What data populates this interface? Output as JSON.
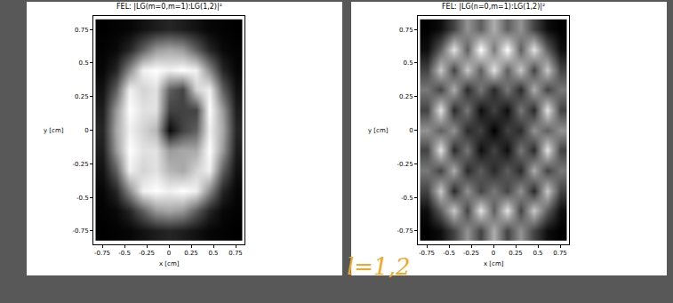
{
  "chart_data": [
    {
      "type": "heatmap",
      "title": "FEL: |LG(m=0,m=1):LG(1,2)|²",
      "x_label": "x [cm]",
      "y_label": "y [cm]",
      "grid": false,
      "x": [
        -0.75,
        -0.6,
        -0.45,
        -0.3,
        -0.15,
        0,
        0.15,
        0.3,
        0.45,
        0.6,
        0.75
      ],
      "y": [
        -0.75,
        -0.6,
        -0.45,
        -0.3,
        -0.15,
        0,
        0.15,
        0.3,
        0.45,
        0.6,
        0.75
      ],
      "cells": [
        [
          0.02,
          0.03,
          0.04,
          0.08,
          0.12,
          0.15,
          0.12,
          0.08,
          0.04,
          0.03,
          0.02
        ],
        [
          0.03,
          0.05,
          0.15,
          0.35,
          0.55,
          0.6,
          0.55,
          0.35,
          0.15,
          0.05,
          0.03
        ],
        [
          0.04,
          0.15,
          0.5,
          0.85,
          0.9,
          0.85,
          0.9,
          0.85,
          0.5,
          0.15,
          0.04
        ],
        [
          0.08,
          0.35,
          0.85,
          0.75,
          0.8,
          0.65,
          0.6,
          0.75,
          0.85,
          0.35,
          0.08
        ],
        [
          0.12,
          0.55,
          0.9,
          0.8,
          0.8,
          0.55,
          0.6,
          0.6,
          0.9,
          0.55,
          0.12
        ],
        [
          0.15,
          0.6,
          0.85,
          0.75,
          0.65,
          0.05,
          0.25,
          0.35,
          0.85,
          0.6,
          0.15
        ],
        [
          0.12,
          0.55,
          0.9,
          0.8,
          0.8,
          0.25,
          0.25,
          0.25,
          0.9,
          0.55,
          0.12
        ],
        [
          0.08,
          0.35,
          0.85,
          0.75,
          0.8,
          0.35,
          0.25,
          0.75,
          0.85,
          0.35,
          0.08
        ],
        [
          0.04,
          0.15,
          0.5,
          0.85,
          0.9,
          0.85,
          0.9,
          0.85,
          0.5,
          0.15,
          0.04
        ],
        [
          0.03,
          0.05,
          0.15,
          0.35,
          0.55,
          0.6,
          0.55,
          0.35,
          0.15,
          0.05,
          0.03
        ],
        [
          0.02,
          0.03,
          0.04,
          0.08,
          0.12,
          0.15,
          0.12,
          0.08,
          0.04,
          0.03,
          0.02
        ]
      ],
      "xlim": [
        -0.85,
        0.85
      ],
      "ylim": [
        -0.85,
        0.85
      ],
      "xticks": [
        -0.75,
        -0.5,
        -0.25,
        0,
        0.25,
        0.5,
        0.75
      ],
      "yticks": [
        -0.75,
        -0.5,
        -0.25,
        0,
        0.25,
        0.5,
        0.75
      ]
    },
    {
      "type": "heatmap",
      "title": "FEL: |LG(n=0,m=1):LG(1,2)|²",
      "x_label": "x [cm]",
      "y_label": "y [cm]",
      "grid": false,
      "x": [
        -0.75,
        -0.6,
        -0.45,
        -0.3,
        -0.15,
        0,
        0.15,
        0.3,
        0.45,
        0.6,
        0.75
      ],
      "y": [
        -0.75,
        -0.6,
        -0.45,
        -0.3,
        -0.15,
        0,
        0.15,
        0.3,
        0.45,
        0.6,
        0.75
      ],
      "cells": [
        [
          0.05,
          0.1,
          0.3,
          0.6,
          0.3,
          0.7,
          0.3,
          0.6,
          0.3,
          0.1,
          0.05
        ],
        [
          0.1,
          0.4,
          0.8,
          0.3,
          0.9,
          0.4,
          0.9,
          0.3,
          0.8,
          0.4,
          0.1
        ],
        [
          0.3,
          0.8,
          0.2,
          0.6,
          0.3,
          0.5,
          0.3,
          0.6,
          0.2,
          0.8,
          0.3
        ],
        [
          0.5,
          0.3,
          0.7,
          0.2,
          0.4,
          0.2,
          0.4,
          0.2,
          0.7,
          0.3,
          0.5
        ],
        [
          0.3,
          0.9,
          0.2,
          0.5,
          0.1,
          0.3,
          0.1,
          0.5,
          0.2,
          0.9,
          0.3
        ],
        [
          0.6,
          0.4,
          0.6,
          0.2,
          0.3,
          0.05,
          0.3,
          0.2,
          0.6,
          0.4,
          0.6
        ],
        [
          0.3,
          0.9,
          0.2,
          0.5,
          0.1,
          0.3,
          0.1,
          0.5,
          0.2,
          0.9,
          0.3
        ],
        [
          0.5,
          0.3,
          0.7,
          0.2,
          0.5,
          0.2,
          0.5,
          0.2,
          0.7,
          0.3,
          0.5
        ],
        [
          0.3,
          0.8,
          0.3,
          0.8,
          0.4,
          0.9,
          0.4,
          0.8,
          0.3,
          0.8,
          0.3
        ],
        [
          0.1,
          0.4,
          0.9,
          0.4,
          1.0,
          0.5,
          1.0,
          0.4,
          0.9,
          0.4,
          0.1
        ],
        [
          0.05,
          0.1,
          0.3,
          0.6,
          0.4,
          0.7,
          0.4,
          0.6,
          0.3,
          0.1,
          0.05
        ]
      ],
      "xlim": [
        -0.85,
        0.85
      ],
      "ylim": [
        -0.85,
        0.85
      ],
      "xticks": [
        -0.75,
        -0.5,
        -0.25,
        0,
        0.25,
        0.5,
        0.75
      ],
      "yticks": [
        -0.75,
        -0.5,
        -0.25,
        0,
        0.25,
        0.5,
        0.75
      ]
    }
  ],
  "annotation": "l=1,2"
}
